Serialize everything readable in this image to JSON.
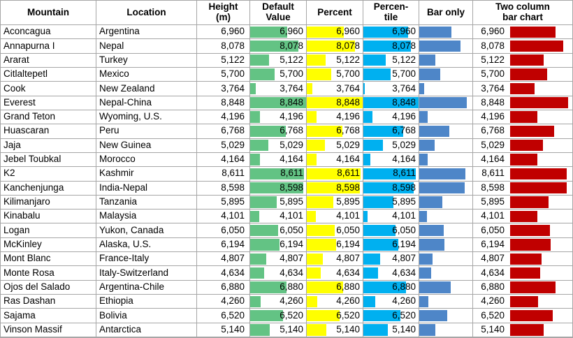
{
  "colors": {
    "default_value_bar": "#63C384",
    "percent_bar": "#FFFF00",
    "percentile_bar": "#00B0F0",
    "bar_only_bar": "#4E86C8",
    "two_column_bar": "#C00000",
    "grid": "#A6A6A6",
    "text": "#000000"
  },
  "header": {
    "mountain": "Mountain",
    "location": "Location",
    "height": "Height\n(m)",
    "default_value": "Default\nValue",
    "percent": "Percent",
    "percentile": "Percen-\ntile",
    "bar_only": "Bar only",
    "two_column": "Two column\nbar chart"
  },
  "rows": [
    {
      "mountain": "Aconcagua",
      "location": "Argentina",
      "height": "6,960",
      "bar_default": 66.6,
      "bar_percent": 66.6,
      "bar_percentile": 81.5,
      "bar_only": 59.9,
      "bar_two": 78.7
    },
    {
      "mountain": "Annapurna I",
      "location": "Nepal",
      "height": "8,078",
      "bar_default": 86.4,
      "bar_percent": 86.4,
      "bar_percentile": 86.1,
      "bar_only": 77.7,
      "bar_two": 91.3
    },
    {
      "mountain": "Ararat",
      "location": "Turkey",
      "height": "5,122",
      "bar_default": 34.0,
      "bar_percent": 34.0,
      "bar_percentile": 40.0,
      "bar_only": 30.6,
      "bar_two": 57.9
    },
    {
      "mountain": "Citlaltepetl",
      "location": "Mexico",
      "height": "5,700",
      "bar_default": 44.3,
      "bar_percent": 44.3,
      "bar_percentile": 49.2,
      "bar_only": 39.8,
      "bar_two": 64.4
    },
    {
      "mountain": "Cook",
      "location": "New Zealand",
      "height": "3,764",
      "bar_default": 10.0,
      "bar_percent": 10.0,
      "bar_percentile": 3.0,
      "bar_only": 9.0,
      "bar_two": 42.5
    },
    {
      "mountain": "Everest",
      "location": "Nepal-China",
      "height": "8,848",
      "bar_default": 100,
      "bar_percent": 100,
      "bar_percentile": 100,
      "bar_only": 90.0,
      "bar_two": 100
    },
    {
      "mountain": "Grand Teton",
      "location": "Wyoming, U.S.",
      "height": "4,196",
      "bar_default": 17.6,
      "bar_percent": 17.6,
      "bar_percentile": 16.9,
      "bar_only": 15.9,
      "bar_two": 47.4
    },
    {
      "mountain": "Huascaran",
      "location": "Peru",
      "height": "6,768",
      "bar_default": 63.2,
      "bar_percent": 63.2,
      "bar_percentile": 72.3,
      "bar_only": 56.9,
      "bar_two": 76.5
    },
    {
      "mountain": "Jaja",
      "location": "New Guinea",
      "height": "5,029",
      "bar_default": 32.4,
      "bar_percent": 32.4,
      "bar_percentile": 35.3,
      "bar_only": 29.2,
      "bar_two": 56.8
    },
    {
      "mountain": "Jebel Toubkal",
      "location": "Morocco",
      "height": "4,164",
      "bar_default": 17.1,
      "bar_percent": 17.1,
      "bar_percentile": 12.2,
      "bar_only": 15.4,
      "bar_two": 47.1
    },
    {
      "mountain": "K2",
      "location": "Kashmir",
      "height": "8,611",
      "bar_default": 95.8,
      "bar_percent": 95.8,
      "bar_percentile": 95.4,
      "bar_only": 86.2,
      "bar_two": 97.3
    },
    {
      "mountain": "Kanchenjunga",
      "location": "India-Nepal",
      "height": "8,598",
      "bar_default": 95.6,
      "bar_percent": 95.6,
      "bar_percentile": 90.8,
      "bar_only": 86.0,
      "bar_two": 97.2
    },
    {
      "mountain": "Kilimanjaro",
      "location": "Tanzania",
      "height": "5,895",
      "bar_default": 47.7,
      "bar_percent": 47.7,
      "bar_percentile": 53.8,
      "bar_only": 43.0,
      "bar_two": 66.6
    },
    {
      "mountain": "Kinabalu",
      "location": "Malaysia",
      "height": "4,101",
      "bar_default": 16.0,
      "bar_percent": 16.0,
      "bar_percentile": 7.6,
      "bar_only": 14.4,
      "bar_two": 46.4
    },
    {
      "mountain": "Logan",
      "location": "Yukon, Canada",
      "height": "6,050",
      "bar_default": 50.5,
      "bar_percent": 50.5,
      "bar_percentile": 58.4,
      "bar_only": 45.4,
      "bar_two": 68.4
    },
    {
      "mountain": "McKinley",
      "location": "Alaska, U.S.",
      "height": "6,194",
      "bar_default": 53.0,
      "bar_percent": 53.0,
      "bar_percentile": 63.0,
      "bar_only": 47.7,
      "bar_two": 70.0
    },
    {
      "mountain": "Mont Blanc",
      "location": "France-Italy",
      "height": "4,807",
      "bar_default": 28.5,
      "bar_percent": 28.5,
      "bar_percentile": 30.7,
      "bar_only": 25.6,
      "bar_two": 54.3
    },
    {
      "mountain": "Monte Rosa",
      "location": "Italy-Switzerland",
      "height": "4,634",
      "bar_default": 25.4,
      "bar_percent": 25.4,
      "bar_percentile": 26.1,
      "bar_only": 22.9,
      "bar_two": 52.4
    },
    {
      "mountain": "Ojos del Salado",
      "location": "Argentina-Chile",
      "height": "6,880",
      "bar_default": 65.2,
      "bar_percent": 65.2,
      "bar_percentile": 76.9,
      "bar_only": 58.6,
      "bar_two": 77.8
    },
    {
      "mountain": "Ras Dashan",
      "location": "Ethiopia",
      "height": "4,260",
      "bar_default": 18.8,
      "bar_percent": 18.8,
      "bar_percentile": 21.5,
      "bar_only": 16.9,
      "bar_two": 48.2
    },
    {
      "mountain": "Sajama",
      "location": "Bolivia",
      "height": "6,520",
      "bar_default": 58.8,
      "bar_percent": 58.8,
      "bar_percentile": 67.7,
      "bar_only": 52.9,
      "bar_two": 73.7
    },
    {
      "mountain": "Vinson Massif",
      "location": "Antarctica",
      "height": "5,140",
      "bar_default": 34.4,
      "bar_percent": 34.4,
      "bar_percentile": 44.6,
      "bar_only": 30.9,
      "bar_two": 58.1
    }
  ],
  "chart_data": {
    "type": "table",
    "columns": [
      "Mountain",
      "Location",
      "Height (m)",
      "Default Value",
      "Percent",
      "Percen-tile",
      "Bar only",
      "Two column bar chart"
    ],
    "categories": [
      "Aconcagua",
      "Annapurna I",
      "Ararat",
      "Citlaltepetl",
      "Cook",
      "Everest",
      "Grand Teton",
      "Huascaran",
      "Jaja",
      "Jebel Toubkal",
      "K2",
      "Kanchenjunga",
      "Kilimanjaro",
      "Kinabalu",
      "Logan",
      "McKinley",
      "Mont Blanc",
      "Monte Rosa",
      "Ojos del Salado",
      "Ras Dashan",
      "Sajama",
      "Vinson Massif"
    ],
    "locations": [
      "Argentina",
      "Nepal",
      "Turkey",
      "Mexico",
      "New Zealand",
      "Nepal-China",
      "Wyoming, U.S.",
      "Peru",
      "New Guinea",
      "Morocco",
      "Kashmir",
      "India-Nepal",
      "Tanzania",
      "Malaysia",
      "Yukon, Canada",
      "Alaska, U.S.",
      "France-Italy",
      "Italy-Switzerland",
      "Argentina-Chile",
      "Ethiopia",
      "Bolivia",
      "Antarctica"
    ],
    "series": [
      {
        "name": "Height (m)",
        "values": [
          6960,
          8078,
          5122,
          5700,
          3764,
          8848,
          4196,
          6768,
          5029,
          4164,
          8611,
          8598,
          5895,
          4101,
          6050,
          6194,
          4807,
          4634,
          6880,
          4260,
          6520,
          5140
        ]
      }
    ],
    "value_range": [
      3764,
      8848
    ],
    "bar_styles": [
      "data-bar default (green)",
      "data-bar percent (yellow)",
      "data-bar percentile (cyan)",
      "data-bar only, no value (blue)",
      "plain bar chart vs value (dark red)"
    ]
  }
}
